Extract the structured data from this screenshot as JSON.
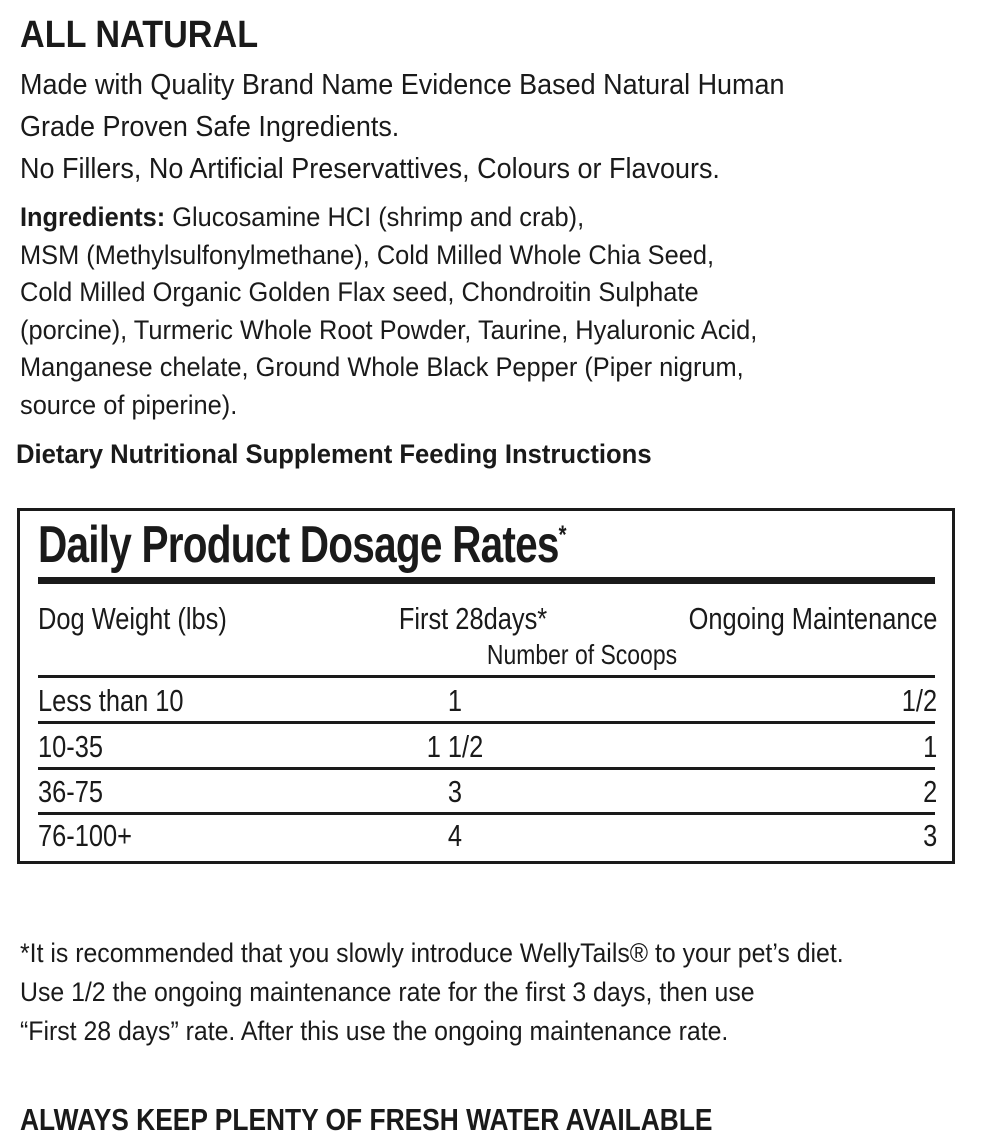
{
  "heading": "ALL NATURAL",
  "intro_lines": [
    "Made with Quality Brand Name Evidence Based Natural Human",
    "Grade Proven Safe Ingredients.",
    "No Fillers, No Artificial Preservattives, Colours or Flavours."
  ],
  "ingredients": {
    "label": "Ingredients:",
    "lines": [
      " Glucosamine HCI (shrimp and crab),",
      "MSM (Methylsulfonylmethane), Cold Milled Whole Chia Seed,",
      "Cold Milled Organic Golden Flax seed, Chondroitin Sulphate",
      "(porcine), Turmeric Whole Root Powder, Taurine, Hyaluronic Acid,",
      "Manganese chelate, Ground Whole Black Pepper (Piper nigrum,",
      "source of piperine)."
    ]
  },
  "feeding_heading": "Dietary Nutritional Supplement Feeding Instructions",
  "table": {
    "title": "Daily Product Dosage Rates",
    "title_mark": "*",
    "columns": [
      "Dog Weight (lbs)",
      "First 28days*",
      "Ongoing Maintenance"
    ],
    "subheader": "Number of Scoops",
    "rows": [
      [
        "Less than 10",
        "1",
        "1/2"
      ],
      [
        "10-35",
        "1 1/2",
        "1"
      ],
      [
        "36-75",
        "3",
        "2"
      ],
      [
        "76-100+",
        "4",
        "3"
      ]
    ]
  },
  "footnote_lines": [
    "*It is recommended that you slowly introduce WellyTails® to your pet’s diet.",
    "Use 1/2 the ongoing maintenance rate for the first 3 days, then use",
    "“First 28 days” rate. After this use the ongoing maintenance rate."
  ],
  "warning": "ALWAYS KEEP PLENTY OF FRESH WATER AVAILABLE"
}
